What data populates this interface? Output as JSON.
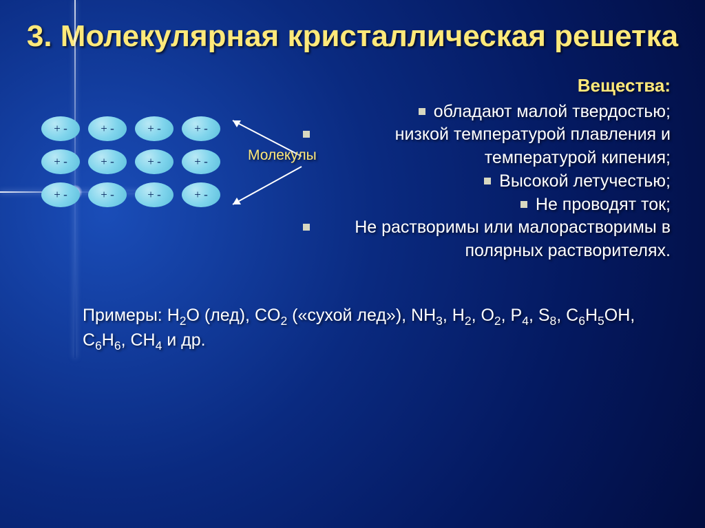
{
  "slide": {
    "title": "3. Молекулярная кристаллическая решетка",
    "lattice": {
      "rows": 3,
      "cols": 4,
      "cell_label": "+ -",
      "cell_color": "#7fd4ec",
      "cell_text_color": "#0a2a60",
      "pointer_label": "Молекулы",
      "pointer_label_color": "#ffe97a"
    },
    "properties": {
      "heading": "Вещества:",
      "heading_color": "#ffe97a",
      "bullet_color": "#d8d8c0",
      "items": [
        "обладают малой твердостью;",
        "низкой температурой плавления и температурой кипения;",
        "Высокой летучестью;",
        "Не проводят ток;",
        "Не растворимы или малорастворимы в полярных растворителях."
      ]
    },
    "examples_html": "Примеры: H<sub>2</sub>O (лед), CO<sub>2</sub> («сухой лед»), NH<sub>3</sub>, H<sub>2</sub>, O<sub>2</sub>, P<sub>4</sub>, S<sub>8</sub>, C<sub>6</sub>H<sub>5</sub>OH, C<sub>6</sub>H<sub>6</sub>, CH<sub>4</sub> и др.",
    "background": {
      "gradient_center": "#1a4db8",
      "gradient_edge": "#020d40",
      "flare_color": "#ffffff"
    },
    "title_color": "#ffe97a",
    "text_color": "#ffffff",
    "title_fontsize": 44,
    "body_fontsize": 25,
    "arrow_color": "#ffffff"
  }
}
